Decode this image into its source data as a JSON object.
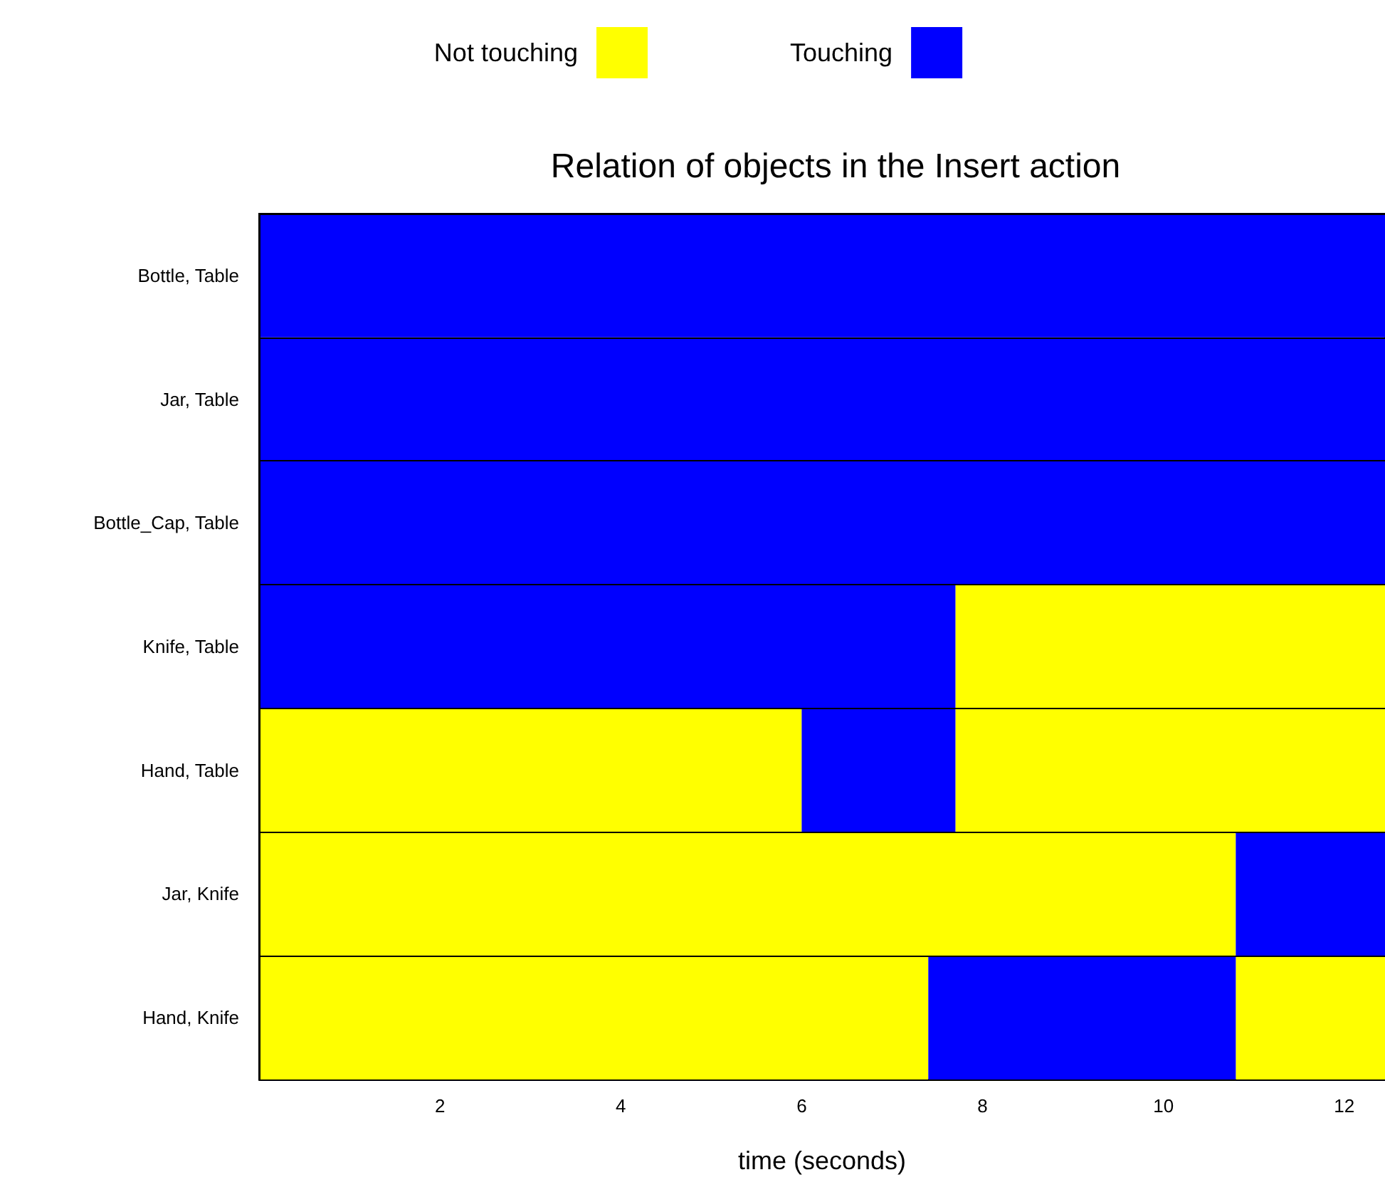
{
  "chart_data": {
    "type": "bar",
    "orientation": "horizontal",
    "title": "Relation of objects in the Insert action",
    "xlabel": "time (seconds)",
    "categories": [
      "Bottle, Table",
      "Jar, Table",
      "Bottle_Cap, Table",
      "Knife, Table",
      "Hand, Table",
      "Jar, Knife",
      "Hand, Knife"
    ],
    "series": [
      {
        "name": "Not touching",
        "color": "#ffff00",
        "base": [
          null,
          null,
          null,
          7.7,
          0,
          0,
          0
        ],
        "values": [
          null,
          null,
          null,
          4.75,
          6.0,
          10.8,
          7.4
        ]
      },
      {
        "color": "#ffff00",
        "base": [
          null,
          null,
          null,
          null,
          7.7,
          null,
          10.8
        ],
        "values": [
          null,
          null,
          null,
          null,
          4.75,
          null,
          1.65
        ]
      },
      {
        "name": "Touching",
        "color": "#0000ff",
        "base": [
          0,
          0,
          0,
          0,
          6.0,
          10.8,
          7.4
        ],
        "values": [
          12.45,
          12.45,
          12.45,
          7.7,
          1.7,
          1.65,
          3.4
        ]
      }
    ],
    "xlim": [
      0,
      12.45
    ],
    "xticks": [
      2,
      4,
      6,
      8,
      10,
      12
    ],
    "grid": "y",
    "legend": "top"
  }
}
